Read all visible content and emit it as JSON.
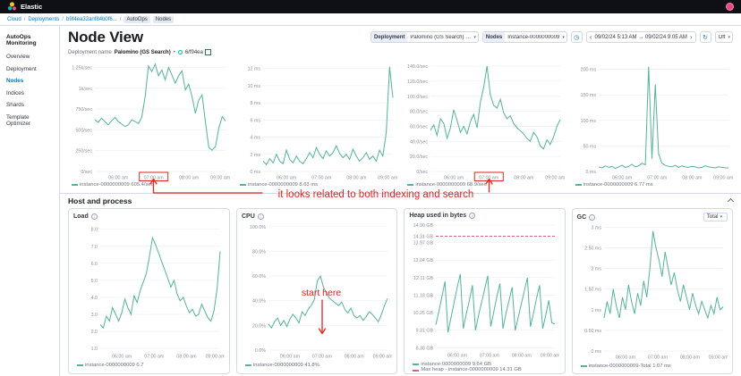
{
  "topbar": {
    "brand": "Elastic"
  },
  "breadcrumb": {
    "items": [
      {
        "label": "Cloud"
      },
      {
        "label": "Deployments"
      },
      {
        "label": "b9f4ea32anf84b0f6..."
      },
      {
        "label": "AutoOps"
      },
      {
        "label": "Nodes"
      }
    ]
  },
  "sidebar": {
    "title": "AutoOps Monitoring",
    "items": [
      {
        "label": "Overview"
      },
      {
        "label": "Deployment"
      },
      {
        "label": "Nodes"
      },
      {
        "label": "Indices"
      },
      {
        "label": "Shards"
      },
      {
        "label": "Template Optimizer"
      }
    ]
  },
  "header": {
    "title": "Node View",
    "deployment_label": "Deployment",
    "deployment_value": "Palomino (GS Search) (...",
    "nodes_label": "Nodes",
    "nodes_value": "Instance-0000000009",
    "date_range": "09/02/24 5:13 AM → 09/02/24 9:05 AM",
    "refresh_value": "Off"
  },
  "subheader": {
    "label": "Deployment name",
    "value": "Palomino (GS Search)",
    "sep": "•",
    "deployment_id": "6/f94ea"
  },
  "section": {
    "title": "Host and process"
  },
  "annotations": {
    "note1": "it looks related to both indexing and search",
    "note2": "start here",
    "color": "#e0261f"
  },
  "icons": {
    "caret_down": "▾",
    "chev_left": "‹",
    "chev_right": "›",
    "clock": "◷",
    "refresh": "↻",
    "info": "i"
  },
  "colors": {
    "accent": "#0077cc",
    "series": "#54b399",
    "max_heap": "#d36086"
  },
  "chart_data": [
    {
      "type": "line",
      "title": "",
      "ylim": [
        0,
        1320
      ],
      "yticks": [
        {
          "v": 1250,
          "label": "1.25k/sec"
        },
        {
          "v": 1000,
          "label": "1k/sec"
        },
        {
          "v": 750,
          "label": "750/sec"
        },
        {
          "v": 500,
          "label": "500/sec"
        },
        {
          "v": 250,
          "label": "250/sec"
        },
        {
          "v": 0,
          "label": "0/sec"
        }
      ],
      "xticks": [
        "06:00 am",
        "07:00 am",
        "08:00 am",
        "09:00 am"
      ],
      "xtick_pos": [
        0.18,
        0.45,
        0.72,
        0.96
      ],
      "box_tick": 1,
      "series": [
        {
          "name": "instance-0000000009",
          "color": "#54b399",
          "values": [
            620,
            590,
            640,
            600,
            560,
            610,
            650,
            600,
            570,
            540,
            560,
            620,
            600,
            575,
            650,
            900,
            1270,
            1200,
            1290,
            1150,
            1220,
            1100,
            1250,
            1160,
            1060,
            1150,
            1210,
            980,
            1050,
            900,
            700,
            860,
            920,
            600,
            290,
            255,
            300,
            520,
            660,
            605
          ]
        }
      ],
      "legend": [
        {
          "label": "instance-0000000009 605.4/sec",
          "color": "#54b399"
        }
      ]
    },
    {
      "type": "line",
      "title": "",
      "ylim": [
        0,
        12.8
      ],
      "yticks": [
        {
          "v": 12,
          "label": "12 ms"
        },
        {
          "v": 10,
          "label": "10 ms"
        },
        {
          "v": 8,
          "label": "8 ms"
        },
        {
          "v": 6,
          "label": "6 ms"
        },
        {
          "v": 4,
          "label": "4 ms"
        },
        {
          "v": 2,
          "label": "2 ms"
        },
        {
          "v": 0,
          "label": "0 ms"
        }
      ],
      "xticks": [
        "06:00 am",
        "07:00 am",
        "08:00 am",
        "09:00 am"
      ],
      "xtick_pos": [
        0.18,
        0.45,
        0.72,
        0.96
      ],
      "series": [
        {
          "name": "instance-0000000009",
          "color": "#54b399",
          "values": [
            1.2,
            0.8,
            1.5,
            1,
            2,
            1.2,
            0.9,
            2.5,
            1.4,
            1,
            1.8,
            1.2,
            0.9,
            1.5,
            2.2,
            1.6,
            2.8,
            2,
            1.5,
            2.4,
            1.8,
            2.2,
            3,
            2.1,
            1.6,
            2,
            1.4,
            2.6,
            1.8,
            1.2,
            1.6,
            2.2,
            1.4,
            1.8,
            1.2,
            2.5,
            1.8,
            4.5,
            12.2,
            8.6
          ]
        }
      ],
      "legend": [
        {
          "label": "instance-0000000009 8.63 ms",
          "color": "#54b399"
        }
      ]
    },
    {
      "type": "line",
      "title": "",
      "ylim": [
        0,
        146
      ],
      "yticks": [
        {
          "v": 140,
          "label": "140.0/sec"
        },
        {
          "v": 120,
          "label": "120.0/sec"
        },
        {
          "v": 100,
          "label": "100.0/sec"
        },
        {
          "v": 80,
          "label": "80.0/sec"
        },
        {
          "v": 60,
          "label": "60.0/sec"
        },
        {
          "v": 40,
          "label": "40.0/sec"
        },
        {
          "v": 20,
          "label": "20.0/sec"
        },
        {
          "v": 0,
          "label": "0/sec"
        }
      ],
      "xticks": [
        "06:00 am",
        "07:00 am",
        "08:00 am",
        "09:00 am"
      ],
      "xtick_pos": [
        0.18,
        0.45,
        0.72,
        0.96
      ],
      "box_tick": 1,
      "series": [
        {
          "name": "instance-0000000009",
          "color": "#54b399",
          "values": [
            55,
            62,
            48,
            70,
            64,
            44,
            58,
            82,
            68,
            52,
            60,
            50,
            66,
            76,
            58,
            92,
            112,
            140,
            102,
            88,
            84,
            96,
            78,
            70,
            74,
            64,
            58,
            54,
            50,
            44,
            40,
            52,
            46,
            34,
            30,
            42,
            36,
            46,
            60,
            69
          ]
        }
      ],
      "legend": [
        {
          "label": "instance-0000000009 68.9/sec",
          "color": "#54b399"
        }
      ]
    },
    {
      "type": "line",
      "title": "",
      "ylim": [
        0,
        215
      ],
      "yticks": [
        {
          "v": 200,
          "label": "200 ms"
        },
        {
          "v": 150,
          "label": "150 ms"
        },
        {
          "v": 100,
          "label": "100 ms"
        },
        {
          "v": 50,
          "label": "50 ms"
        },
        {
          "v": 0,
          "label": "0 ms"
        }
      ],
      "xticks": [
        "06:00 am",
        "07:00 am",
        "08:00 am",
        "09:00 am"
      ],
      "xtick_pos": [
        0.18,
        0.45,
        0.72,
        0.96
      ],
      "series": [
        {
          "name": "instance-0000000009",
          "color": "#54b399",
          "values": [
            9,
            7,
            11,
            8,
            10,
            6,
            9,
            12,
            8,
            10,
            14,
            9,
            11,
            16,
            13,
            205,
            25,
            170,
            35,
            16,
            12,
            10,
            9,
            12,
            8,
            11,
            9,
            8,
            10,
            9,
            7,
            8,
            11,
            9,
            8,
            7,
            9,
            8,
            7,
            7
          ]
        }
      ],
      "legend": [
        {
          "label": "instance-0000000009 6.77 ms",
          "color": "#54b399"
        }
      ]
    },
    {
      "type": "line",
      "title": "Load",
      "ylim": [
        0.9,
        8.3
      ],
      "yticks": [
        {
          "v": 8,
          "label": "8.0"
        },
        {
          "v": 7,
          "label": "7.0"
        },
        {
          "v": 6,
          "label": "6.0"
        },
        {
          "v": 5,
          "label": "5.0"
        },
        {
          "v": 4,
          "label": "4.0"
        },
        {
          "v": 3,
          "label": "3.0"
        },
        {
          "v": 2,
          "label": "2.0"
        },
        {
          "v": 1,
          "label": "1.0"
        }
      ],
      "xticks": [
        "06:00 am",
        "07:00 am",
        "08:00 am",
        "09:00 am"
      ],
      "xtick_pos": [
        0.18,
        0.45,
        0.72,
        0.96
      ],
      "series": [
        {
          "name": "instance-0000000009",
          "color": "#54b399",
          "values": [
            2.4,
            2.2,
            2.9,
            2.6,
            3.4,
            3,
            2.6,
            3.1,
            3.9,
            3.4,
            3,
            4.1,
            3.7,
            4.4,
            4.9,
            5.4,
            6.4,
            7.5,
            7.1,
            6.6,
            6.1,
            5.6,
            5.1,
            4.6,
            5,
            4.2,
            3.8,
            4,
            3.5,
            3.1,
            3.3,
            2.9,
            3,
            3.6,
            3.2,
            2.8,
            2.6,
            3.2,
            4.5,
            6.7
          ]
        }
      ],
      "legend": [
        {
          "label": "instance-0000000009 6.7",
          "color": "#54b399"
        }
      ]
    },
    {
      "type": "line",
      "title": "CPU",
      "ylim": [
        0,
        102
      ],
      "yticks": [
        {
          "v": 100,
          "label": "100.0%"
        },
        {
          "v": 80,
          "label": "80.0%"
        },
        {
          "v": 60,
          "label": "60.0%"
        },
        {
          "v": 40,
          "label": "40.0%"
        },
        {
          "v": 20,
          "label": "20.0%"
        },
        {
          "v": 0,
          "label": "0.0%"
        }
      ],
      "xticks": [
        "06:00 am",
        "07:00 am",
        "08:00 am",
        "09:00 am"
      ],
      "xtick_pos": [
        0.18,
        0.45,
        0.72,
        0.96
      ],
      "series": [
        {
          "name": "instance-0000000009",
          "color": "#54b399",
          "values": [
            21,
            18,
            23,
            26,
            20,
            24,
            19,
            25,
            29,
            26,
            22,
            31,
            28,
            33,
            36,
            41,
            56,
            60,
            51,
            46,
            42,
            40,
            38,
            36,
            39,
            33,
            30,
            34,
            28,
            26,
            28,
            24,
            27,
            31,
            29,
            26,
            23,
            29,
            36,
            41.8
          ]
        }
      ],
      "legend": [
        {
          "label": "instance-0000000009 41.8%",
          "color": "#54b399"
        }
      ]
    },
    {
      "type": "line",
      "title": "Heap used in bytes",
      "ylim": [
        8.3,
        15.0
      ],
      "yticks": [
        {
          "v": 14.9,
          "label": "14.90 GB"
        },
        {
          "v": 14.31,
          "label": "14.31 GB"
        },
        {
          "v": 13.97,
          "label": "13.97 GB"
        },
        {
          "v": 13.04,
          "label": "13.04 GB"
        },
        {
          "v": 12.11,
          "label": "12.11 GB"
        },
        {
          "v": 11.18,
          "label": "11.18 GB"
        },
        {
          "v": 10.25,
          "label": "10.25 GB"
        },
        {
          "v": 9.31,
          "label": "9.31 GB"
        },
        {
          "v": 8.38,
          "label": "8.38 GB"
        }
      ],
      "xticks": [
        "06:00 am",
        "07:00 am",
        "08:00 am",
        "09:00 am"
      ],
      "xtick_pos": [
        0.18,
        0.45,
        0.72,
        0.96
      ],
      "series": [
        {
          "name": "instance-0000000009",
          "color": "#54b399",
          "values": [
            9.6,
            10.3,
            11.1,
            11.9,
            9.2,
            10,
            10.8,
            11.6,
            12.3,
            9.4,
            10.2,
            10.9,
            11.7,
            9.3,
            10.1,
            10.8,
            11.5,
            12.2,
            9.5,
            10.3,
            11.1,
            11.8,
            9.4,
            10.2,
            10.9,
            11.6,
            9.3,
            10,
            10.7,
            11.4,
            12.1,
            9.5,
            10.2,
            11,
            11.7,
            9.4,
            10.1,
            10.9,
            9.7,
            9.64
          ]
        },
        {
          "name": "Max heap - instance-0000000009",
          "color": "#d36086",
          "dash": true,
          "values": [
            14.31,
            14.31
          ]
        }
      ],
      "legend": [
        {
          "label": "instance-0000000009 9.64 GB",
          "color": "#54b399"
        },
        {
          "label": "Max heap - instance-0000000009 14.31 GB",
          "color": "#d36086"
        }
      ]
    },
    {
      "type": "line",
      "title": "GC",
      "selector": "Total",
      "ylim": [
        0,
        3.05
      ],
      "yticks": [
        {
          "v": 3,
          "label": "3 ms"
        },
        {
          "v": 2.5,
          "label": "2.50 ms"
        },
        {
          "v": 2,
          "label": "2 ms"
        },
        {
          "v": 1.5,
          "label": "1.50 ms"
        },
        {
          "v": 1,
          "label": "1 ms"
        },
        {
          "v": 0.5,
          "label": "0.50 ms"
        },
        {
          "v": 0,
          "label": "0 ms"
        }
      ],
      "xticks": [
        "06:00 am",
        "07:00 am",
        "08:00 am",
        "09:00 am"
      ],
      "xtick_pos": [
        0.18,
        0.45,
        0.72,
        0.96
      ],
      "series": [
        {
          "name": "instance-0000000009-Total",
          "color": "#54b399",
          "values": [
            0.8,
            1.2,
            0.9,
            1.5,
            1.1,
            0.8,
            1.3,
            1,
            1.6,
            1.2,
            0.9,
            1.4,
            1.1,
            1.7,
            1.3,
            2,
            2.9,
            2.5,
            2.2,
            1.8,
            2.4,
            2,
            1.6,
            1.9,
            1.5,
            1.2,
            1.6,
            1.3,
            1,
            1.4,
            1.1,
            0.9,
            1.2,
            1,
            0.8,
            1.1,
            0.9,
            1.3,
            1,
            1.07
          ]
        }
      ],
      "legend": [
        {
          "label": "instance-0000000009-Total 1.07 ms",
          "color": "#54b399"
        }
      ]
    }
  ]
}
